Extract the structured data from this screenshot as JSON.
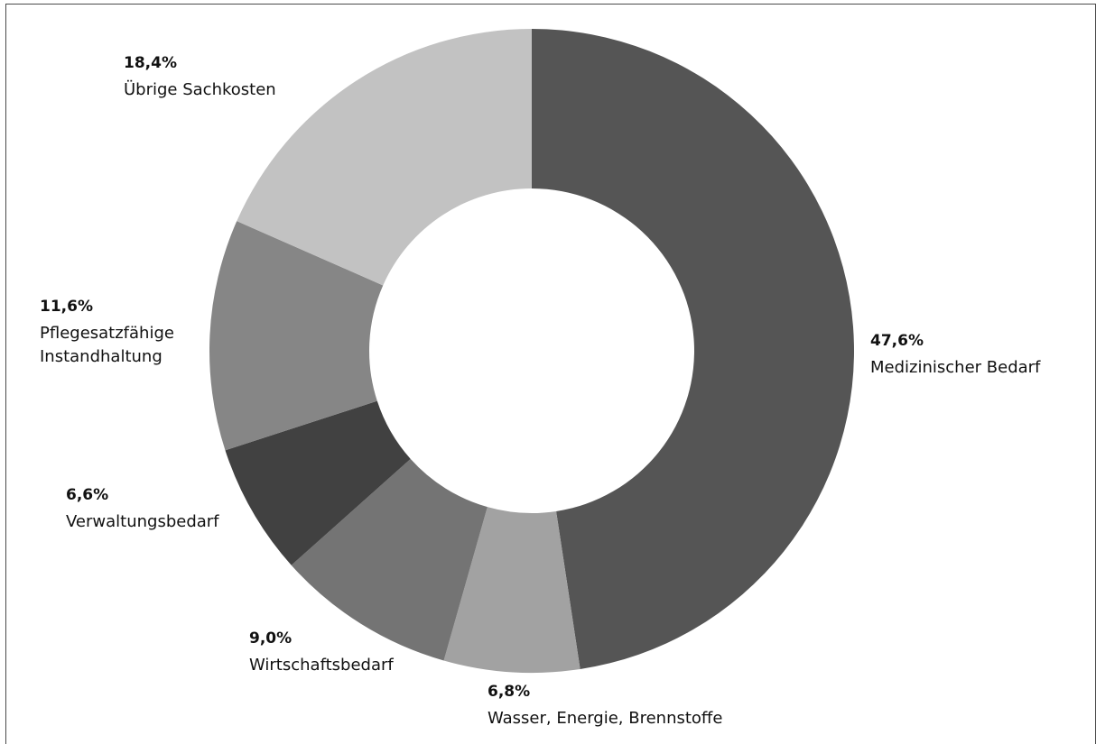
{
  "chart_data": {
    "type": "pie",
    "variant": "donut",
    "start": "12 o'clock",
    "direction": "clockwise",
    "slices": [
      {
        "label": "Medizinischer Bedarf",
        "label_lines": [
          "Medizinischer Bedarf"
        ],
        "value": 47.6,
        "value_text": "47,6%",
        "color": "#555555"
      },
      {
        "label": "Wasser, Energie, Brennstoffe",
        "label_lines": [
          "Wasser, Energie, Brennstoffe"
        ],
        "value": 6.8,
        "value_text": "6,8%",
        "color": "#a2a2a2"
      },
      {
        "label": "Wirtschaftsbedarf",
        "label_lines": [
          "Wirtschaftsbedarf"
        ],
        "value": 9.0,
        "value_text": "9,0%",
        "color": "#747474"
      },
      {
        "label": "Verwaltungsbedarf",
        "label_lines": [
          "Verwaltungsbedarf"
        ],
        "value": 6.6,
        "value_text": "6,6%",
        "color": "#414141"
      },
      {
        "label": "Pflegesatzfähige Instandhaltung",
        "label_lines": [
          "Pflegesatzfähige",
          "Instandhaltung"
        ],
        "value": 11.6,
        "value_text": "11,6%",
        "color": "#868686"
      },
      {
        "label": "Übrige Sachkosten",
        "label_lines": [
          "Übrige Sachkosten"
        ],
        "value": 18.4,
        "value_text": "18,4%",
        "color": "#c2c2c2"
      }
    ]
  }
}
